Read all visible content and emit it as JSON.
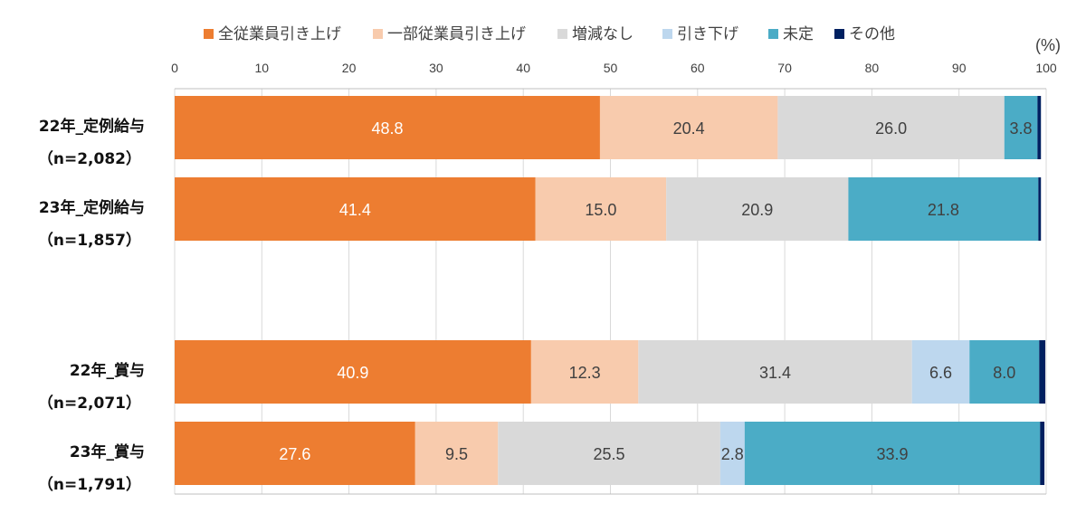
{
  "chart_data": {
    "type": "bar",
    "orientation": "horizontal",
    "stacked": true,
    "unit": "(%)",
    "xlim": [
      0,
      100
    ],
    "xticks": [
      "0",
      "10",
      "20",
      "30",
      "40",
      "50",
      "60",
      "70",
      "80",
      "90",
      "100"
    ],
    "grid": true,
    "legend_position": "top",
    "categories": [
      {
        "line1": "22年_定例給与",
        "line2": "（n=2,082）"
      },
      {
        "line1": "23年_定例給与",
        "line2": "（n=1,857）"
      },
      {
        "line1": "22年_賞与",
        "line2": "（n=2,071）"
      },
      {
        "line1": "23年_賞与",
        "line2": "（n=1,791）"
      }
    ],
    "series": [
      {
        "name": "全従業員引き上げ",
        "color": "#ED7D31",
        "label_color": "#ffffff",
        "values": [
          48.8,
          41.4,
          40.9,
          27.6
        ]
      },
      {
        "name": "一部従業員引き上げ",
        "color": "#F8CBAD",
        "label_color": "#404040",
        "values": [
          20.4,
          15.0,
          12.3,
          9.5
        ]
      },
      {
        "name": "増減なし",
        "color": "#D9D9D9",
        "label_color": "#404040",
        "values": [
          26.0,
          20.9,
          31.4,
          25.5
        ]
      },
      {
        "name": "引き下げ",
        "color": "#BDD7EE",
        "label_color": "#404040",
        "values": [
          0,
          0,
          6.6,
          2.8
        ]
      },
      {
        "name": "未定",
        "color": "#4BACC6",
        "label_color": "#404040",
        "values": [
          3.8,
          21.8,
          8.0,
          33.9
        ]
      },
      {
        "name": "その他",
        "color": "#002060",
        "label_color": "#ffffff",
        "values": [
          0.4,
          0.3,
          0.7,
          0.5
        ]
      }
    ],
    "data_labels": [
      [
        "48.8",
        "20.4",
        "26.0",
        "",
        "3.8",
        ""
      ],
      [
        "41.4",
        "15.0",
        "20.9",
        "",
        "21.8",
        ""
      ],
      [
        "40.9",
        "12.3",
        "31.4",
        "6.6",
        "8.0",
        ""
      ],
      [
        "27.6",
        "9.5",
        "25.5",
        "2.8",
        "33.9",
        ""
      ]
    ]
  }
}
